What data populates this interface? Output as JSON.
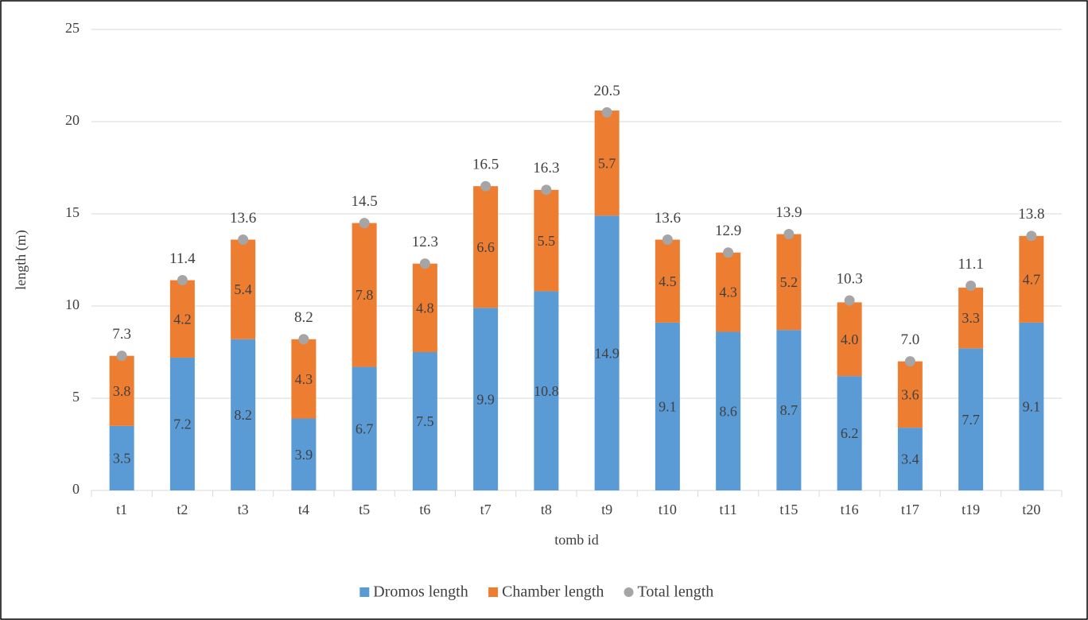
{
  "chart_data": {
    "type": "bar",
    "stacked": true,
    "x_label": "tomb id",
    "y_label": "length (m)",
    "categories": [
      "t1",
      "t2",
      "t3",
      "t4",
      "t5",
      "t6",
      "t7",
      "t8",
      "t9",
      "t10",
      "t11",
      "t15",
      "t16",
      "t17",
      "t19",
      "t20"
    ],
    "series": [
      {
        "name": "Dromos length",
        "color": "#5b9bd5",
        "values": [
          3.5,
          7.2,
          8.2,
          3.9,
          6.7,
          7.5,
          9.9,
          10.8,
          14.9,
          9.1,
          8.6,
          8.7,
          6.2,
          3.4,
          7.7,
          9.1
        ],
        "value_labels": [
          "3.5",
          "7.2",
          "8.2",
          "3.9",
          "6.7",
          "7.5",
          "9.9",
          "10.8",
          "14.9",
          "9.1",
          "8.6",
          "8.7",
          "6.2",
          "3.4",
          "7.7",
          "9.1"
        ]
      },
      {
        "name": "Chamber length",
        "color": "#ed7d31",
        "values": [
          3.8,
          4.2,
          5.4,
          4.3,
          7.8,
          4.8,
          6.6,
          5.5,
          5.7,
          4.5,
          4.3,
          5.2,
          4,
          3.6,
          3.3,
          4.7
        ],
        "value_labels": [
          "3.8",
          "4.2",
          "5.4",
          "4.3",
          "7.8",
          "4.8",
          "6.6",
          "5.5",
          "5.7",
          "4.5",
          "4.3",
          "5.2",
          "4.0",
          "3.6",
          "3.3",
          "4.7"
        ]
      },
      {
        "name": "Total length",
        "color": "#a5a5a5",
        "type": "scatter",
        "values": [
          7.3,
          11.4,
          13.6,
          8.2,
          14.5,
          12.3,
          16.5,
          16.3,
          20.5,
          13.6,
          12.9,
          13.9,
          10.3,
          7,
          11.1,
          13.8
        ],
        "value_labels": [
          "7.3",
          "11.4",
          "13.6",
          "8.2",
          "14.5",
          "12.3",
          "16.5",
          "16.3",
          "20.5",
          "13.6",
          "12.9",
          "13.9",
          "10.3",
          "7.0",
          "11.1",
          "13.8"
        ]
      }
    ],
    "ylim": [
      0,
      25
    ],
    "yticks": [
      0,
      5,
      10,
      15,
      20,
      25
    ],
    "grid": true,
    "legend": "bottom"
  }
}
